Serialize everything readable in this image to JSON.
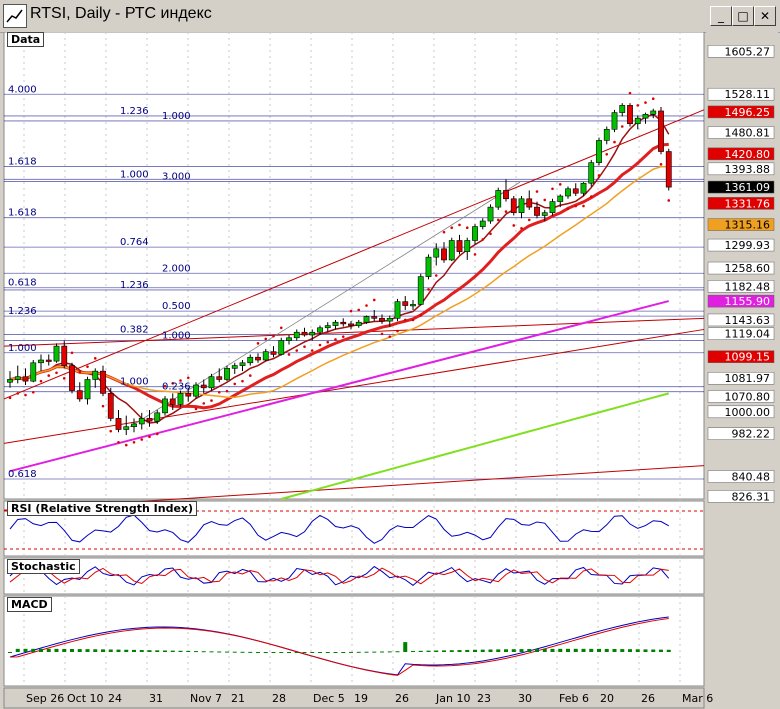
{
  "window": {
    "title": "RTSI, Daily - РТС индекс",
    "buttons": [
      "_",
      "□",
      "✕"
    ]
  },
  "panes": {
    "price": {
      "label": "Data"
    },
    "rsi": {
      "label": "RSI (Relative Strength Index)"
    },
    "stoch": {
      "label": "Stochastic"
    },
    "macd": {
      "label": "MACD"
    }
  },
  "colors": {
    "bull": "#00c000",
    "bear": "#e00000",
    "ma_fast": "#a01010",
    "ma_red": "#e02020",
    "ma_orange": "#f0a020",
    "ma_magenta": "#e020e0",
    "ma_lime": "#80e020",
    "fib": "#000080",
    "rsi": "#0000c0"
  },
  "chart_data": {
    "type": "candlestick",
    "x_ticks": [
      "Sep 26",
      "Oct 10",
      "24",
      "31",
      "Nov 7",
      "21",
      "28",
      "Dec 5",
      "19",
      "26",
      "Jan 10",
      "23",
      "30",
      "Feb 6",
      "20",
      "26",
      "Mar 6"
    ],
    "price_axis": {
      "ylim": [
        800,
        1640
      ],
      "labels": [
        "1605.27",
        "1528.11",
        "1496.25",
        "1480.81",
        "1420.80",
        "1393.88",
        "1361.09",
        "1331.76",
        "1315.16",
        "1299.93",
        "1258.60",
        "1182.48",
        "1155.90",
        "1143.63",
        "1119.04",
        "1099.15",
        "1081.97",
        "1070.80",
        "1000.00",
        "982.22",
        "840.48",
        "826.31"
      ]
    },
    "fib_labels": [
      {
        "text": "4.000",
        "price": 1528
      },
      {
        "text": "1.236",
        "price": 1489
      },
      {
        "text": "1.000",
        "price": 1480
      },
      {
        "text": "1.618",
        "price": 1398
      },
      {
        "text": "1.000",
        "price": 1375
      },
      {
        "text": "3.000",
        "price": 1371
      },
      {
        "text": "1.618",
        "price": 1306
      },
      {
        "text": "0.764",
        "price": 1253
      },
      {
        "text": "2.000",
        "price": 1206
      },
      {
        "text": "0.618",
        "price": 1180
      },
      {
        "text": "1.236",
        "price": 1176
      },
      {
        "text": "0.500",
        "price": 1138
      },
      {
        "text": "1.236",
        "price": 1129
      },
      {
        "text": "0.382",
        "price": 1096
      },
      {
        "text": "1.000",
        "price": 1085
      },
      {
        "text": "1.000",
        "price": 1063
      },
      {
        "text": "1.000",
        "price": 1002
      },
      {
        "text": "0.236",
        "price": 993
      },
      {
        "text": "0.618",
        "price": 836
      }
    ],
    "candles": [
      [
        1010,
        1030,
        1000,
        1015
      ],
      [
        1015,
        1040,
        1008,
        1020
      ],
      [
        1020,
        1035,
        1005,
        1012
      ],
      [
        1012,
        1050,
        1010,
        1045
      ],
      [
        1045,
        1060,
        1030,
        1050
      ],
      [
        1050,
        1060,
        1040,
        1048
      ],
      [
        1048,
        1080,
        1045,
        1075
      ],
      [
        1075,
        1085,
        1035,
        1040
      ],
      [
        1040,
        1045,
        990,
        995
      ],
      [
        995,
        1010,
        975,
        980
      ],
      [
        980,
        1020,
        970,
        1015
      ],
      [
        1015,
        1035,
        1000,
        1030
      ],
      [
        1030,
        1040,
        985,
        990
      ],
      [
        990,
        1000,
        940,
        945
      ],
      [
        945,
        960,
        920,
        925
      ],
      [
        925,
        950,
        915,
        930
      ],
      [
        930,
        945,
        920,
        935
      ],
      [
        935,
        955,
        925,
        945
      ],
      [
        945,
        960,
        930,
        940
      ],
      [
        940,
        960,
        935,
        955
      ],
      [
        955,
        985,
        950,
        980
      ],
      [
        980,
        990,
        960,
        970
      ],
      [
        970,
        995,
        965,
        990
      ],
      [
        990,
        1000,
        975,
        985
      ],
      [
        985,
        1010,
        980,
        1005
      ],
      [
        1005,
        1015,
        990,
        1000
      ],
      [
        1000,
        1025,
        995,
        1020
      ],
      [
        1020,
        1035,
        1010,
        1015
      ],
      [
        1015,
        1040,
        1012,
        1035
      ],
      [
        1035,
        1045,
        1025,
        1040
      ],
      [
        1040,
        1050,
        1030,
        1045
      ],
      [
        1045,
        1060,
        1040,
        1055
      ],
      [
        1055,
        1062,
        1045,
        1050
      ],
      [
        1050,
        1070,
        1048,
        1065
      ],
      [
        1065,
        1075,
        1055,
        1060
      ],
      [
        1060,
        1090,
        1058,
        1085
      ],
      [
        1085,
        1095,
        1078,
        1090
      ],
      [
        1090,
        1105,
        1085,
        1100
      ],
      [
        1100,
        1108,
        1092,
        1095
      ],
      [
        1095,
        1105,
        1085,
        1100
      ],
      [
        1100,
        1112,
        1095,
        1108
      ],
      [
        1108,
        1118,
        1100,
        1112
      ],
      [
        1112,
        1122,
        1105,
        1118
      ],
      [
        1118,
        1125,
        1110,
        1115
      ],
      [
        1115,
        1120,
        1105,
        1112
      ],
      [
        1112,
        1122,
        1108,
        1118
      ],
      [
        1118,
        1130,
        1115,
        1128
      ],
      [
        1128,
        1140,
        1120,
        1125
      ],
      [
        1125,
        1132,
        1115,
        1120
      ],
      [
        1120,
        1130,
        1110,
        1125
      ],
      [
        1125,
        1160,
        1120,
        1155
      ],
      [
        1155,
        1165,
        1140,
        1148
      ],
      [
        1148,
        1158,
        1140,
        1150
      ],
      [
        1150,
        1205,
        1148,
        1200
      ],
      [
        1200,
        1240,
        1195,
        1235
      ],
      [
        1235,
        1260,
        1220,
        1250
      ],
      [
        1250,
        1262,
        1225,
        1230
      ],
      [
        1230,
        1270,
        1228,
        1265
      ],
      [
        1265,
        1275,
        1240,
        1245
      ],
      [
        1245,
        1270,
        1230,
        1265
      ],
      [
        1265,
        1295,
        1258,
        1290
      ],
      [
        1290,
        1305,
        1285,
        1300
      ],
      [
        1300,
        1330,
        1295,
        1325
      ],
      [
        1325,
        1360,
        1320,
        1355
      ],
      [
        1355,
        1375,
        1335,
        1340
      ],
      [
        1340,
        1345,
        1310,
        1315
      ],
      [
        1315,
        1345,
        1305,
        1340
      ],
      [
        1340,
        1355,
        1320,
        1325
      ],
      [
        1325,
        1335,
        1305,
        1310
      ],
      [
        1310,
        1320,
        1300,
        1315
      ],
      [
        1315,
        1340,
        1310,
        1335
      ],
      [
        1335,
        1348,
        1325,
        1345
      ],
      [
        1345,
        1362,
        1340,
        1358
      ],
      [
        1358,
        1368,
        1345,
        1350
      ],
      [
        1350,
        1370,
        1345,
        1368
      ],
      [
        1368,
        1410,
        1362,
        1405
      ],
      [
        1405,
        1450,
        1400,
        1445
      ],
      [
        1445,
        1470,
        1438,
        1465
      ],
      [
        1465,
        1500,
        1460,
        1495
      ],
      [
        1495,
        1512,
        1488,
        1508
      ],
      [
        1508,
        1512,
        1470,
        1475
      ],
      [
        1475,
        1490,
        1465,
        1485
      ],
      [
        1485,
        1495,
        1475,
        1492
      ],
      [
        1492,
        1502,
        1485,
        1498
      ],
      [
        1498,
        1505,
        1420,
        1425
      ],
      [
        1425,
        1430,
        1355,
        1361
      ]
    ]
  }
}
